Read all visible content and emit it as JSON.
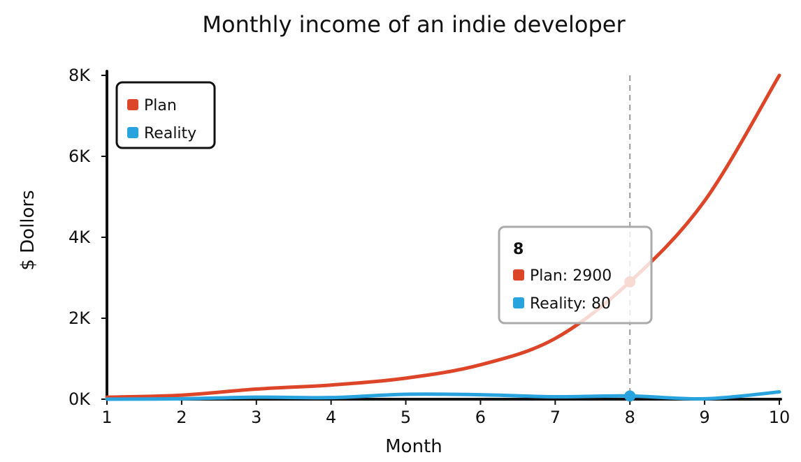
{
  "chart_data": {
    "type": "line",
    "title": "Monthly income of an indie developer",
    "xlabel": "Month",
    "ylabel": "$ Dollors",
    "x": [
      1,
      2,
      3,
      4,
      5,
      6,
      7,
      8,
      9,
      10
    ],
    "x_tick_labels": [
      "1",
      "2",
      "3",
      "4",
      "5",
      "6",
      "7",
      "8",
      "9",
      "10"
    ],
    "xlim": [
      1,
      10
    ],
    "ylim": [
      0,
      8000
    ],
    "y_ticks": [
      0,
      2000,
      4000,
      6000,
      8000
    ],
    "y_tick_labels": [
      "0K",
      "2K",
      "4K",
      "6K",
      "8K"
    ],
    "grid": false,
    "legend_position": "top-left",
    "series": [
      {
        "name": "Plan",
        "color": "#dd4528",
        "values": [
          50,
          100,
          250,
          350,
          520,
          850,
          1500,
          2900,
          4900,
          8000
        ]
      },
      {
        "name": "Reality",
        "color": "#28a3dd",
        "values": [
          0,
          10,
          50,
          40,
          120,
          110,
          60,
          80,
          10,
          180
        ]
      }
    ],
    "tooltip": {
      "title": "8",
      "x": 8,
      "entries": [
        {
          "series": "Plan",
          "text": "Plan: 2900"
        },
        {
          "series": "Reality",
          "text": "Reality: 80"
        }
      ]
    }
  }
}
